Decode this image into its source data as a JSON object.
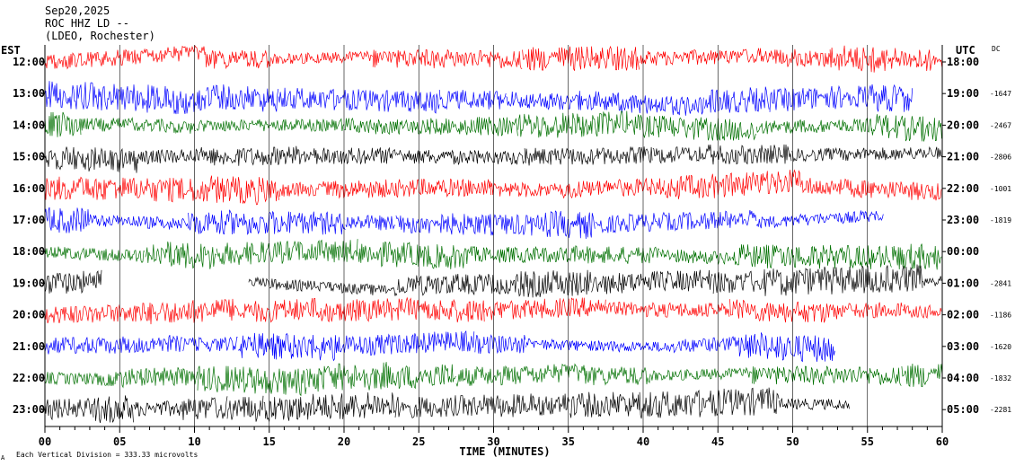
{
  "header": {
    "date": "Sep20,2025",
    "station": "ROC HHZ LD --",
    "network": "(LDEO, Rochester)"
  },
  "chart_data": {
    "type": "line",
    "xlabel": "TIME (MINUTES)",
    "left_axis_label": "EST",
    "right_axis_label": "UTC",
    "offset_column_label": "DC",
    "xlim": [
      0,
      60
    ],
    "x_ticks": [
      0,
      5,
      10,
      15,
      20,
      25,
      30,
      35,
      40,
      45,
      50,
      55,
      60
    ],
    "x_tick_labels": [
      "00",
      "05",
      "10",
      "15",
      "20",
      "25",
      "30",
      "35",
      "40",
      "45",
      "50",
      "55",
      "60"
    ],
    "grid": true,
    "scale_note": "Each Vertical Division =  333.33 microvolts",
    "corner_glyph": "A",
    "trace_colors": [
      "#ff0000",
      "#0000ff",
      "#007000",
      "#000000"
    ],
    "rows": [
      {
        "est": "12:00",
        "utc": "18:00",
        "dc": ""
      },
      {
        "est": "13:00",
        "utc": "19:00",
        "dc": "-1647"
      },
      {
        "est": "14:00",
        "utc": "20:00",
        "dc": "-2467"
      },
      {
        "est": "15:00",
        "utc": "21:00",
        "dc": "-2806"
      },
      {
        "est": "16:00",
        "utc": "22:00",
        "dc": "-1001"
      },
      {
        "est": "17:00",
        "utc": "23:00",
        "dc": "-1819"
      },
      {
        "est": "18:00",
        "utc": "00:00",
        "dc": ""
      },
      {
        "est": "19:00",
        "utc": "01:00",
        "dc": "-2841"
      },
      {
        "est": "20:00",
        "utc": "02:00",
        "dc": "-1186"
      },
      {
        "est": "21:00",
        "utc": "03:00",
        "dc": "-1620"
      },
      {
        "est": "22:00",
        "utc": "04:00",
        "dc": "-1832"
      },
      {
        "est": "23:00",
        "utc": "05:00",
        "dc": "-2281"
      }
    ]
  }
}
